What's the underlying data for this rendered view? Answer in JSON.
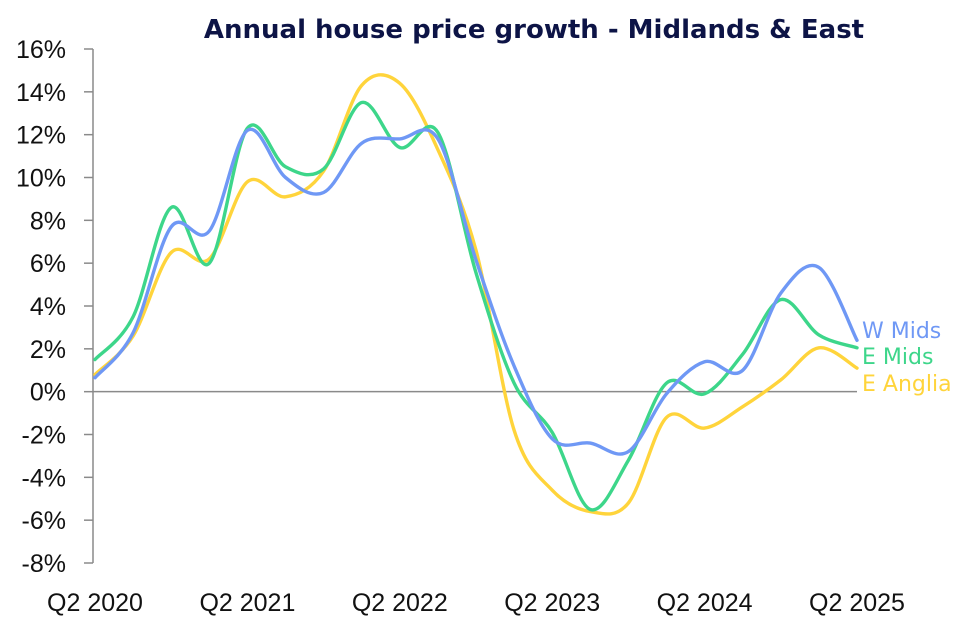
{
  "chart_data": {
    "type": "line",
    "title": "Annual house price growth - Midlands & East",
    "xlabel": "",
    "ylabel": "",
    "ylim": [
      -8,
      16
    ],
    "ytick_step": 2,
    "yticks": [
      "16%",
      "14%",
      "12%",
      "10%",
      "8%",
      "6%",
      "4%",
      "2%",
      "0%",
      "-2%",
      "-4%",
      "-6%",
      "-8%"
    ],
    "ytick_values": [
      16,
      14,
      12,
      10,
      8,
      6,
      4,
      2,
      0,
      -2,
      -4,
      -6,
      -8
    ],
    "x": [
      "Q2 2020",
      "Q3 2020",
      "Q4 2020",
      "Q1 2021",
      "Q2 2021",
      "Q3 2021",
      "Q4 2021",
      "Q1 2022",
      "Q2 2022",
      "Q3 2022",
      "Q4 2022",
      "Q1 2023",
      "Q2 2023",
      "Q3 2023",
      "Q4 2023",
      "Q1 2024",
      "Q2 2024",
      "Q3 2024",
      "Q4 2024",
      "Q1 2025",
      "Q2 2025"
    ],
    "xtick_labels": [
      "Q2 2020",
      "Q2 2021",
      "Q2 2022",
      "Q2 2023",
      "Q2 2024",
      "Q2 2025"
    ],
    "xtick_indices": [
      0,
      4,
      8,
      12,
      16,
      20
    ],
    "grid": false,
    "zero_line": true,
    "legend": "inline-right",
    "series": [
      {
        "name": "W Mids",
        "color": "#6f98f5",
        "values": [
          0.65,
          2.75,
          7.7,
          7.5,
          12.2,
          10.0,
          9.3,
          11.6,
          11.8,
          11.8,
          6.15,
          1.2,
          -2.2,
          -2.4,
          -2.8,
          -0.1,
          1.4,
          1.0,
          4.6,
          5.8,
          2.4
        ]
      },
      {
        "name": "E Mids",
        "color": "#3dd68a",
        "values": [
          1.5,
          3.5,
          8.6,
          6.0,
          12.3,
          10.5,
          10.4,
          13.5,
          11.4,
          12.1,
          5.55,
          0.4,
          -1.9,
          -5.5,
          -3.2,
          0.4,
          -0.1,
          1.75,
          4.3,
          2.65,
          2.05
        ]
      },
      {
        "name": "E Anglia",
        "color": "#ffd43b",
        "values": [
          0.8,
          2.6,
          6.5,
          6.2,
          9.8,
          9.1,
          10.3,
          14.3,
          14.4,
          11.3,
          6.6,
          -1.8,
          -4.6,
          -5.6,
          -5.2,
          -1.2,
          -1.7,
          -0.7,
          0.55,
          2.05,
          1.1
        ]
      }
    ]
  }
}
